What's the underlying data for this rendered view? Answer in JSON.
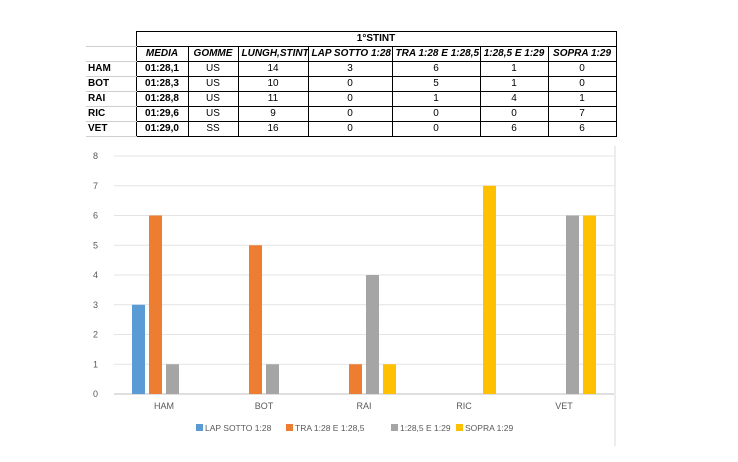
{
  "table": {
    "title": "1°STINT",
    "headers": [
      "MEDIA",
      "GOMME",
      "LUNGH,STINT",
      "LAP SOTTO 1:28",
      "TRA 1:28 E 1:28,5",
      "1:28,5 E 1:29",
      "SOPRA 1:29"
    ],
    "rows": [
      {
        "driver": "HAM",
        "cells": [
          "01:28,1",
          "US",
          "14",
          "3",
          "6",
          "1",
          "0"
        ]
      },
      {
        "driver": "BOT",
        "cells": [
          "01:28,3",
          "US",
          "10",
          "0",
          "5",
          "1",
          "0"
        ]
      },
      {
        "driver": "RAI",
        "cells": [
          "01:28,8",
          "US",
          "11",
          "0",
          "1",
          "4",
          "1"
        ]
      },
      {
        "driver": "RIC",
        "cells": [
          "01:29,6",
          "US",
          "9",
          "0",
          "0",
          "0",
          "7"
        ]
      },
      {
        "driver": "VET",
        "cells": [
          "01:29,0",
          "SS",
          "16",
          "0",
          "0",
          "6",
          "6"
        ]
      }
    ]
  },
  "chart_data": {
    "type": "bar",
    "categories": [
      "HAM",
      "BOT",
      "RAI",
      "RIC",
      "VET"
    ],
    "series": [
      {
        "name": "LAP SOTTO 1:28",
        "color": "#5B9BD5",
        "values": [
          3,
          0,
          0,
          0,
          0
        ]
      },
      {
        "name": "TRA 1:28 E 1:28,5",
        "color": "#ED7D31",
        "values": [
          6,
          5,
          1,
          0,
          0
        ]
      },
      {
        "name": "1:28,5 E 1:29",
        "color": "#A5A5A5",
        "values": [
          1,
          1,
          4,
          0,
          6
        ]
      },
      {
        "name": "SOPRA 1:29",
        "color": "#FFC000",
        "values": [
          0,
          0,
          1,
          7,
          6
        ]
      }
    ],
    "yticks": [
      "0",
      "1",
      "2",
      "3",
      "4",
      "5",
      "6",
      "7",
      "8"
    ],
    "ylim": [
      0,
      8
    ],
    "grid": true,
    "legend_position": "bottom"
  }
}
